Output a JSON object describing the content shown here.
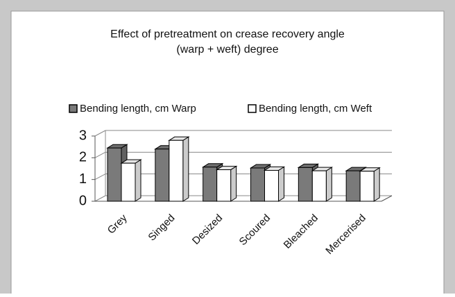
{
  "chart_data": {
    "type": "bar3d",
    "title": [
      "Effect of pretreatment on crease recovery angle",
      "(warp + weft) degree"
    ],
    "categories": [
      "Grey",
      "Singed",
      "Desized",
      "Scoured",
      "Bleached",
      "Mercerised"
    ],
    "series": [
      {
        "name": "Bending length, cm Warp",
        "color": "#7a7a7a",
        "values": [
          2.45,
          2.4,
          1.57,
          1.53,
          1.55,
          1.4
        ]
      },
      {
        "name": "Bending length, cm Weft",
        "color": "#ffffff",
        "values": [
          1.75,
          2.8,
          1.45,
          1.42,
          1.4,
          1.38
        ]
      }
    ],
    "ylim": [
      0,
      3
    ],
    "yticks": [
      0,
      1,
      2,
      3
    ],
    "grid": true,
    "legend": "top"
  }
}
